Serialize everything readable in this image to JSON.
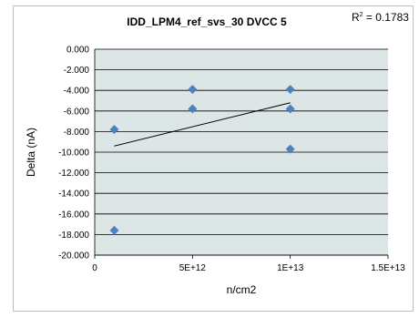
{
  "chart_data": {
    "type": "scatter",
    "title": "IDD_LPM4_ref_svs_30 DVCC 5",
    "xlabel": "n/cm2",
    "ylabel": "Delta (nA)",
    "xlim": [
      0,
      15000000000000
    ],
    "ylim": [
      -20,
      0
    ],
    "x_ticks": [
      0,
      5000000000000,
      10000000000000,
      15000000000000
    ],
    "x_tick_labels": [
      "0",
      "5E+12",
      "1E+13",
      "1.5E+13"
    ],
    "y_ticks": [
      0,
      -2,
      -4,
      -6,
      -8,
      -10,
      -12,
      -14,
      -16,
      -18,
      -20
    ],
    "y_tick_labels": [
      "0.000",
      "-2.000",
      "-4.000",
      "-6.000",
      "-8.000",
      "-10.000",
      "-12.000",
      "-14.000",
      "-16.000",
      "-18.000",
      "-20.000"
    ],
    "grid": true,
    "plot_background": "#dde6e6",
    "series": [
      {
        "color": "#4f81bd",
        "marker": "diamond",
        "points": [
          {
            "x": 1000000000000,
            "y": -7.8
          },
          {
            "x": 1000000000000,
            "y": -17.6
          },
          {
            "x": 5000000000000,
            "y": -3.9
          },
          {
            "x": 5000000000000,
            "y": -5.8
          },
          {
            "x": 10000000000000,
            "y": -3.9
          },
          {
            "x": 10000000000000,
            "y": -5.8
          },
          {
            "x": 10000000000000,
            "y": -9.7
          }
        ]
      }
    ],
    "trendline": {
      "type": "linear",
      "color": "#000000",
      "from": {
        "x": 1000000000000,
        "y": -9.4
      },
      "to": {
        "x": 10000000000000,
        "y": -5.2
      }
    },
    "r_squared_label": {
      "prefix": "R",
      "sup": "2",
      "suffix": " = 0.1783"
    }
  }
}
